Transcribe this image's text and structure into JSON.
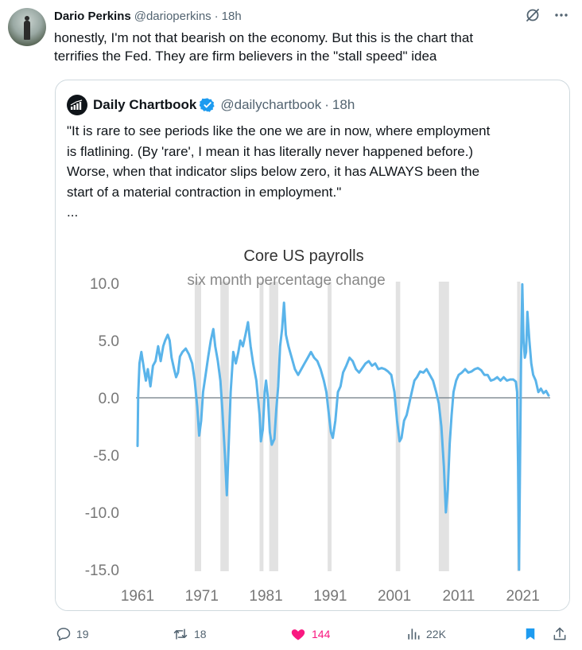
{
  "tweet": {
    "author_name": "Dario Perkins",
    "author_handle": "@darioperkins",
    "separator": "·",
    "time": "18h",
    "text_line1": "honestly, I'm not that bearish on the economy. But this is the chart that",
    "text_line2": "terrifies the Fed. They are firm believers in the \"stall speed\" idea"
  },
  "quote": {
    "author_name": "Daily Chartbook",
    "author_handle": "@dailychartbook",
    "separator": "·",
    "time": "18h",
    "text_line1": "\"It is rare to see periods like the one we are in now, where employment",
    "text_line2": "is flatlining. (By 'rare', I mean it has literally never happened before.)",
    "text_line3": "Worse, when that indicator slips below zero, it has ALWAYS been the",
    "text_line4": "start of a material contraction in employment.\"",
    "text_line5": "..."
  },
  "chart_data": {
    "type": "line",
    "title": "Core US payrolls",
    "subtitle": "six month percentage change",
    "xlabel": "",
    "ylabel": "",
    "ylim": [
      -15,
      10
    ],
    "xlim": [
      1961,
      2025
    ],
    "y_ticks": [
      "10.0",
      "5.0",
      "0.0",
      "-5.0",
      "-10.0",
      "-15.0"
    ],
    "y_tick_values": [
      10,
      5,
      0,
      -5,
      -10,
      -15
    ],
    "x_ticks": [
      "1961",
      "1971",
      "1981",
      "1991",
      "2001",
      "2011",
      "2021"
    ],
    "x_tick_values": [
      1961,
      1971,
      1981,
      1991,
      2001,
      2011,
      2021
    ],
    "grid": false,
    "recessions": [
      [
        1969.9,
        1970.9
      ],
      [
        1973.9,
        1975.2
      ],
      [
        1980.0,
        1980.6
      ],
      [
        1981.5,
        1982.9
      ],
      [
        1990.6,
        1991.2
      ],
      [
        2001.2,
        2001.9
      ],
      [
        2007.9,
        2009.5
      ],
      [
        2020.1,
        2020.4
      ]
    ],
    "series": [
      {
        "color": "#5ab4ea",
        "x": [
          1961.0,
          1961.1,
          1961.3,
          1961.6,
          1962.0,
          1962.3,
          1962.6,
          1963.0,
          1963.4,
          1963.8,
          1964.2,
          1964.6,
          1965.0,
          1965.3,
          1965.7,
          1966.0,
          1966.3,
          1966.7,
          1967.0,
          1967.3,
          1967.6,
          1968.0,
          1968.5,
          1969.0,
          1969.5,
          1969.9,
          1970.3,
          1970.6,
          1970.9,
          1971.2,
          1971.6,
          1972.0,
          1972.4,
          1972.8,
          1973.1,
          1973.5,
          1973.9,
          1974.2,
          1974.6,
          1974.9,
          1975.1,
          1975.5,
          1975.9,
          1976.3,
          1976.7,
          1977.0,
          1977.4,
          1977.8,
          1978.2,
          1978.6,
          1979.0,
          1979.5,
          1980.0,
          1980.2,
          1980.5,
          1980.8,
          1981.0,
          1981.3,
          1981.6,
          1981.9,
          1982.3,
          1982.6,
          1982.9,
          1983.2,
          1983.5,
          1983.8,
          1984.1,
          1984.5,
          1985.0,
          1985.5,
          1986.0,
          1986.5,
          1987.0,
          1987.5,
          1988.0,
          1988.5,
          1989.0,
          1989.5,
          1990.0,
          1990.4,
          1990.8,
          1991.1,
          1991.4,
          1991.8,
          1992.2,
          1992.6,
          1993.0,
          1993.5,
          1994.0,
          1994.5,
          1995.0,
          1995.5,
          1996.0,
          1996.5,
          1997.0,
          1997.5,
          1998.0,
          1998.5,
          1999.0,
          1999.5,
          2000.0,
          2000.5,
          2001.0,
          2001.4,
          2001.8,
          2002.1,
          2002.5,
          2002.9,
          2003.3,
          2003.7,
          2004.1,
          2004.5,
          2005.0,
          2005.5,
          2006.0,
          2006.5,
          2007.0,
          2007.5,
          2007.9,
          2008.3,
          2008.7,
          2009.0,
          2009.3,
          2009.6,
          2009.9,
          2010.2,
          2010.6,
          2011.0,
          2011.5,
          2012.0,
          2012.5,
          2013.0,
          2013.5,
          2014.0,
          2014.5,
          2015.0,
          2015.5,
          2016.0,
          2016.5,
          2017.0,
          2017.5,
          2018.0,
          2018.5,
          2019.0,
          2019.5,
          2019.9,
          2020.1,
          2020.25,
          2020.4,
          2020.5,
          2020.7,
          2020.9,
          2021.1,
          2021.3,
          2021.5,
          2021.7,
          2022.0,
          2022.3,
          2022.6,
          2023.0,
          2023.4,
          2023.8,
          2024.2,
          2024.6,
          2025.0
        ],
        "y": [
          -4.2,
          0.2,
          3.0,
          4.0,
          2.5,
          1.5,
          2.5,
          1.0,
          2.8,
          3.2,
          4.5,
          3.2,
          4.5,
          5.0,
          5.5,
          5.0,
          3.5,
          2.5,
          1.8,
          2.2,
          3.6,
          4.0,
          4.3,
          3.8,
          3.0,
          1.5,
          -0.8,
          -3.3,
          -2.0,
          0.5,
          2.0,
          3.6,
          5.0,
          6.0,
          4.5,
          3.2,
          1.5,
          -1.0,
          -5.0,
          -8.5,
          -5.5,
          0.5,
          4.0,
          3.0,
          4.0,
          5.0,
          4.5,
          5.5,
          6.6,
          4.5,
          3.0,
          1.5,
          -1.5,
          -3.8,
          -2.8,
          0.5,
          1.5,
          0.0,
          -3.0,
          -4.1,
          -3.6,
          -1.0,
          1.0,
          4.5,
          6.0,
          8.3,
          5.5,
          4.5,
          3.5,
          2.5,
          2.0,
          2.5,
          3.0,
          3.5,
          4.0,
          3.5,
          3.2,
          2.5,
          1.5,
          0.5,
          -1.5,
          -3.0,
          -3.5,
          -2.0,
          0.5,
          1.0,
          2.2,
          2.8,
          3.5,
          3.2,
          2.5,
          2.2,
          2.6,
          3.0,
          3.2,
          2.8,
          3.0,
          2.5,
          2.6,
          2.5,
          2.3,
          2.0,
          0.5,
          -2.0,
          -3.8,
          -3.5,
          -2.0,
          -1.5,
          -0.5,
          0.5,
          1.5,
          1.8,
          2.3,
          2.2,
          2.5,
          2.0,
          1.5,
          0.5,
          -0.5,
          -2.5,
          -6.0,
          -10.0,
          -8.0,
          -4.0,
          -1.5,
          0.5,
          1.5,
          2.0,
          2.2,
          2.5,
          2.2,
          2.3,
          2.5,
          2.6,
          2.4,
          2.0,
          2.0,
          1.5,
          1.6,
          1.8,
          1.5,
          1.8,
          1.5,
          1.6,
          1.6,
          1.4,
          0.5,
          -6.0,
          -15.0,
          -9.0,
          3.0,
          9.9,
          5.0,
          3.5,
          4.0,
          7.5,
          5.0,
          3.0,
          2.0,
          1.5,
          0.5,
          0.8,
          0.4,
          0.6,
          0.2
        ]
      }
    ]
  },
  "actions": {
    "replies": "19",
    "retweets": "18",
    "likes": "144",
    "views": "22K"
  },
  "colors": {
    "accent": "#1d9bf0",
    "like": "#f91880",
    "muted": "#536471",
    "series": "#5ab4ea",
    "recession": "#e2e2e2"
  }
}
